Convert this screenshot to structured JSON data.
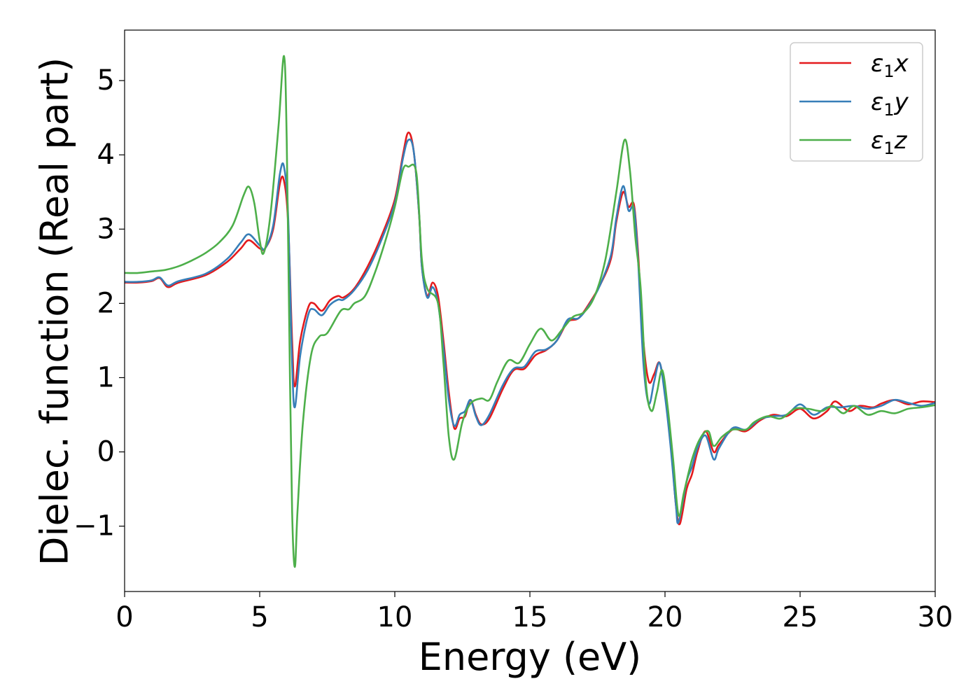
{
  "chart_data": {
    "type": "line",
    "title": "",
    "xlabel": "Energy (eV)",
    "ylabel": "Dielec. function (Real part)",
    "xlim": [
      0,
      30
    ],
    "ylim": [
      -1.88,
      5.68
    ],
    "xticks": [
      0,
      5,
      10,
      15,
      20,
      25,
      30
    ],
    "xtick_labels": [
      "0",
      "5",
      "10",
      "15",
      "20",
      "25",
      "30"
    ],
    "yticks": [
      -1,
      0,
      1,
      2,
      3,
      4,
      5
    ],
    "ytick_labels": [
      "−1",
      "0",
      "1",
      "2",
      "3",
      "4",
      "5"
    ],
    "grid": false,
    "legend_position": "top-right",
    "series": [
      {
        "name": "ε₁x",
        "legend_main": "ε",
        "legend_sub": "1",
        "legend_var": "x",
        "color": "#e41a1c",
        "points": [
          [
            0,
            2.28
          ],
          [
            0.5,
            2.28
          ],
          [
            1.0,
            2.3
          ],
          [
            1.3,
            2.34
          ],
          [
            1.6,
            2.22
          ],
          [
            2,
            2.28
          ],
          [
            3,
            2.38
          ],
          [
            3.8,
            2.56
          ],
          [
            4.3,
            2.74
          ],
          [
            4.6,
            2.85
          ],
          [
            5.0,
            2.74
          ],
          [
            5.2,
            2.74
          ],
          [
            5.5,
            3.0
          ],
          [
            5.75,
            3.62
          ],
          [
            5.9,
            3.65
          ],
          [
            6.05,
            3.1
          ],
          [
            6.2,
            1.5
          ],
          [
            6.3,
            0.88
          ],
          [
            6.5,
            1.5
          ],
          [
            6.8,
            1.95
          ],
          [
            7.0,
            2.0
          ],
          [
            7.3,
            1.9
          ],
          [
            7.6,
            2.04
          ],
          [
            7.9,
            2.1
          ],
          [
            8.1,
            2.08
          ],
          [
            8.5,
            2.2
          ],
          [
            9.0,
            2.5
          ],
          [
            9.5,
            2.9
          ],
          [
            10.0,
            3.4
          ],
          [
            10.3,
            4.0
          ],
          [
            10.5,
            4.3
          ],
          [
            10.7,
            4.05
          ],
          [
            10.9,
            3.2
          ],
          [
            11.0,
            2.5
          ],
          [
            11.2,
            2.1
          ],
          [
            11.4,
            2.28
          ],
          [
            11.6,
            2.1
          ],
          [
            11.8,
            1.5
          ],
          [
            12.0,
            0.8
          ],
          [
            12.2,
            0.32
          ],
          [
            12.4,
            0.45
          ],
          [
            12.6,
            0.48
          ],
          [
            12.8,
            0.7
          ],
          [
            13.0,
            0.5
          ],
          [
            13.2,
            0.37
          ],
          [
            13.5,
            0.45
          ],
          [
            14.0,
            0.85
          ],
          [
            14.4,
            1.1
          ],
          [
            14.8,
            1.12
          ],
          [
            15.2,
            1.3
          ],
          [
            15.6,
            1.37
          ],
          [
            16.0,
            1.5
          ],
          [
            16.4,
            1.75
          ],
          [
            16.8,
            1.8
          ],
          [
            17.2,
            2.0
          ],
          [
            17.6,
            2.25
          ],
          [
            18.0,
            2.6
          ],
          [
            18.2,
            3.1
          ],
          [
            18.45,
            3.5
          ],
          [
            18.65,
            3.3
          ],
          [
            18.85,
            3.33
          ],
          [
            19.0,
            2.7
          ],
          [
            19.2,
            1.5
          ],
          [
            19.4,
            0.95
          ],
          [
            19.6,
            1.05
          ],
          [
            19.8,
            1.2
          ],
          [
            20.0,
            0.8
          ],
          [
            20.2,
            0.2
          ],
          [
            20.4,
            -0.7
          ],
          [
            20.55,
            -0.97
          ],
          [
            20.8,
            -0.5
          ],
          [
            21.0,
            -0.3
          ],
          [
            21.2,
            0.0
          ],
          [
            21.5,
            0.28
          ],
          [
            21.8,
            0.0
          ],
          [
            22.0,
            0.1
          ],
          [
            22.5,
            0.3
          ],
          [
            23.0,
            0.28
          ],
          [
            23.5,
            0.42
          ],
          [
            24.0,
            0.5
          ],
          [
            24.5,
            0.48
          ],
          [
            25.0,
            0.58
          ],
          [
            25.5,
            0.45
          ],
          [
            26.0,
            0.55
          ],
          [
            26.3,
            0.68
          ],
          [
            26.8,
            0.55
          ],
          [
            27.2,
            0.62
          ],
          [
            27.7,
            0.6
          ],
          [
            28.0,
            0.65
          ],
          [
            28.5,
            0.7
          ],
          [
            29.0,
            0.64
          ],
          [
            29.5,
            0.68
          ],
          [
            30.0,
            0.67
          ]
        ]
      },
      {
        "name": "ε₁y",
        "legend_main": "ε",
        "legend_sub": "1",
        "legend_var": "y",
        "color": "#377eb8",
        "points": [
          [
            0,
            2.29
          ],
          [
            0.5,
            2.29
          ],
          [
            1.0,
            2.31
          ],
          [
            1.3,
            2.35
          ],
          [
            1.6,
            2.24
          ],
          [
            2,
            2.3
          ],
          [
            3,
            2.4
          ],
          [
            3.8,
            2.6
          ],
          [
            4.3,
            2.82
          ],
          [
            4.6,
            2.93
          ],
          [
            5.0,
            2.78
          ],
          [
            5.2,
            2.74
          ],
          [
            5.5,
            3.05
          ],
          [
            5.75,
            3.75
          ],
          [
            5.9,
            3.84
          ],
          [
            6.05,
            3.2
          ],
          [
            6.2,
            1.2
          ],
          [
            6.3,
            0.6
          ],
          [
            6.5,
            1.3
          ],
          [
            6.8,
            1.85
          ],
          [
            7.0,
            1.92
          ],
          [
            7.3,
            1.84
          ],
          [
            7.6,
            1.98
          ],
          [
            7.9,
            2.05
          ],
          [
            8.1,
            2.05
          ],
          [
            8.5,
            2.18
          ],
          [
            9.0,
            2.45
          ],
          [
            9.5,
            2.85
          ],
          [
            10.0,
            3.35
          ],
          [
            10.3,
            3.95
          ],
          [
            10.5,
            4.2
          ],
          [
            10.7,
            4.05
          ],
          [
            10.9,
            3.2
          ],
          [
            11.0,
            2.5
          ],
          [
            11.2,
            2.08
          ],
          [
            11.4,
            2.22
          ],
          [
            11.6,
            2.0
          ],
          [
            11.8,
            1.4
          ],
          [
            12.0,
            0.7
          ],
          [
            12.2,
            0.35
          ],
          [
            12.4,
            0.5
          ],
          [
            12.6,
            0.55
          ],
          [
            12.8,
            0.7
          ],
          [
            13.0,
            0.48
          ],
          [
            13.2,
            0.36
          ],
          [
            13.5,
            0.5
          ],
          [
            14.0,
            0.9
          ],
          [
            14.4,
            1.12
          ],
          [
            14.8,
            1.15
          ],
          [
            15.2,
            1.35
          ],
          [
            15.6,
            1.38
          ],
          [
            16.0,
            1.5
          ],
          [
            16.4,
            1.78
          ],
          [
            16.8,
            1.8
          ],
          [
            17.2,
            1.98
          ],
          [
            17.6,
            2.25
          ],
          [
            18.0,
            2.65
          ],
          [
            18.2,
            3.15
          ],
          [
            18.45,
            3.58
          ],
          [
            18.65,
            3.25
          ],
          [
            18.85,
            3.28
          ],
          [
            19.0,
            2.6
          ],
          [
            19.2,
            1.2
          ],
          [
            19.4,
            0.65
          ],
          [
            19.6,
            0.95
          ],
          [
            19.8,
            1.2
          ],
          [
            20.0,
            0.75
          ],
          [
            20.2,
            0.1
          ],
          [
            20.4,
            -0.7
          ],
          [
            20.5,
            -0.95
          ],
          [
            20.8,
            -0.4
          ],
          [
            21.0,
            -0.2
          ],
          [
            21.2,
            0.05
          ],
          [
            21.5,
            0.22
          ],
          [
            21.8,
            -0.1
          ],
          [
            22.0,
            0.05
          ],
          [
            22.5,
            0.32
          ],
          [
            23.0,
            0.3
          ],
          [
            23.5,
            0.44
          ],
          [
            24.0,
            0.48
          ],
          [
            24.5,
            0.5
          ],
          [
            25.0,
            0.64
          ],
          [
            25.5,
            0.5
          ],
          [
            26.0,
            0.6
          ],
          [
            26.5,
            0.6
          ],
          [
            27.0,
            0.62
          ],
          [
            27.5,
            0.58
          ],
          [
            28.0,
            0.62
          ],
          [
            28.5,
            0.7
          ],
          [
            29.0,
            0.66
          ],
          [
            29.5,
            0.62
          ],
          [
            30.0,
            0.66
          ]
        ]
      },
      {
        "name": "ε₁z",
        "legend_main": "ε",
        "legend_sub": "1",
        "legend_var": "z",
        "color": "#4daf4a",
        "points": [
          [
            0,
            2.41
          ],
          [
            0.5,
            2.41
          ],
          [
            1.0,
            2.43
          ],
          [
            1.5,
            2.45
          ],
          [
            2,
            2.5
          ],
          [
            2.5,
            2.58
          ],
          [
            3.0,
            2.68
          ],
          [
            3.5,
            2.82
          ],
          [
            4.0,
            3.05
          ],
          [
            4.4,
            3.45
          ],
          [
            4.6,
            3.57
          ],
          [
            4.8,
            3.35
          ],
          [
            5.0,
            2.85
          ],
          [
            5.15,
            2.68
          ],
          [
            5.4,
            3.2
          ],
          [
            5.7,
            4.4
          ],
          [
            5.9,
            5.33
          ],
          [
            6.0,
            4.2
          ],
          [
            6.1,
            1.5
          ],
          [
            6.2,
            -0.8
          ],
          [
            6.3,
            -1.55
          ],
          [
            6.4,
            -0.8
          ],
          [
            6.6,
            0.4
          ],
          [
            6.9,
            1.3
          ],
          [
            7.2,
            1.55
          ],
          [
            7.5,
            1.6
          ],
          [
            8.0,
            1.9
          ],
          [
            8.3,
            1.92
          ],
          [
            8.5,
            2.0
          ],
          [
            8.9,
            2.1
          ],
          [
            9.3,
            2.45
          ],
          [
            9.7,
            2.9
          ],
          [
            10.0,
            3.3
          ],
          [
            10.3,
            3.8
          ],
          [
            10.5,
            3.84
          ],
          [
            10.8,
            3.75
          ],
          [
            11.0,
            2.6
          ],
          [
            11.2,
            2.2
          ],
          [
            11.6,
            2.0
          ],
          [
            11.8,
            1.2
          ],
          [
            12.0,
            0.2
          ],
          [
            12.2,
            -0.1
          ],
          [
            12.5,
            0.4
          ],
          [
            12.8,
            0.65
          ],
          [
            13.2,
            0.72
          ],
          [
            13.5,
            0.7
          ],
          [
            13.8,
            0.95
          ],
          [
            14.2,
            1.23
          ],
          [
            14.6,
            1.2
          ],
          [
            15.0,
            1.45
          ],
          [
            15.4,
            1.66
          ],
          [
            15.8,
            1.5
          ],
          [
            16.2,
            1.65
          ],
          [
            16.6,
            1.82
          ],
          [
            17.0,
            1.88
          ],
          [
            17.4,
            2.1
          ],
          [
            17.8,
            2.6
          ],
          [
            18.2,
            3.5
          ],
          [
            18.5,
            4.2
          ],
          [
            18.7,
            3.8
          ],
          [
            18.9,
            2.9
          ],
          [
            19.1,
            2.2
          ],
          [
            19.3,
            0.9
          ],
          [
            19.5,
            0.55
          ],
          [
            19.7,
            0.8
          ],
          [
            19.9,
            1.1
          ],
          [
            20.1,
            0.6
          ],
          [
            20.3,
            -0.1
          ],
          [
            20.5,
            -0.85
          ],
          [
            20.7,
            -0.55
          ],
          [
            21.0,
            -0.1
          ],
          [
            21.3,
            0.18
          ],
          [
            21.6,
            0.28
          ],
          [
            21.8,
            0.08
          ],
          [
            22.1,
            0.2
          ],
          [
            22.5,
            0.3
          ],
          [
            23.0,
            0.3
          ],
          [
            23.3,
            0.4
          ],
          [
            23.8,
            0.48
          ],
          [
            24.3,
            0.45
          ],
          [
            24.8,
            0.58
          ],
          [
            25.3,
            0.58
          ],
          [
            25.8,
            0.55
          ],
          [
            26.2,
            0.62
          ],
          [
            26.6,
            0.52
          ],
          [
            27.0,
            0.62
          ],
          [
            27.5,
            0.5
          ],
          [
            28.0,
            0.55
          ],
          [
            28.5,
            0.52
          ],
          [
            29.0,
            0.58
          ],
          [
            29.5,
            0.6
          ],
          [
            30.0,
            0.63
          ]
        ]
      }
    ]
  }
}
